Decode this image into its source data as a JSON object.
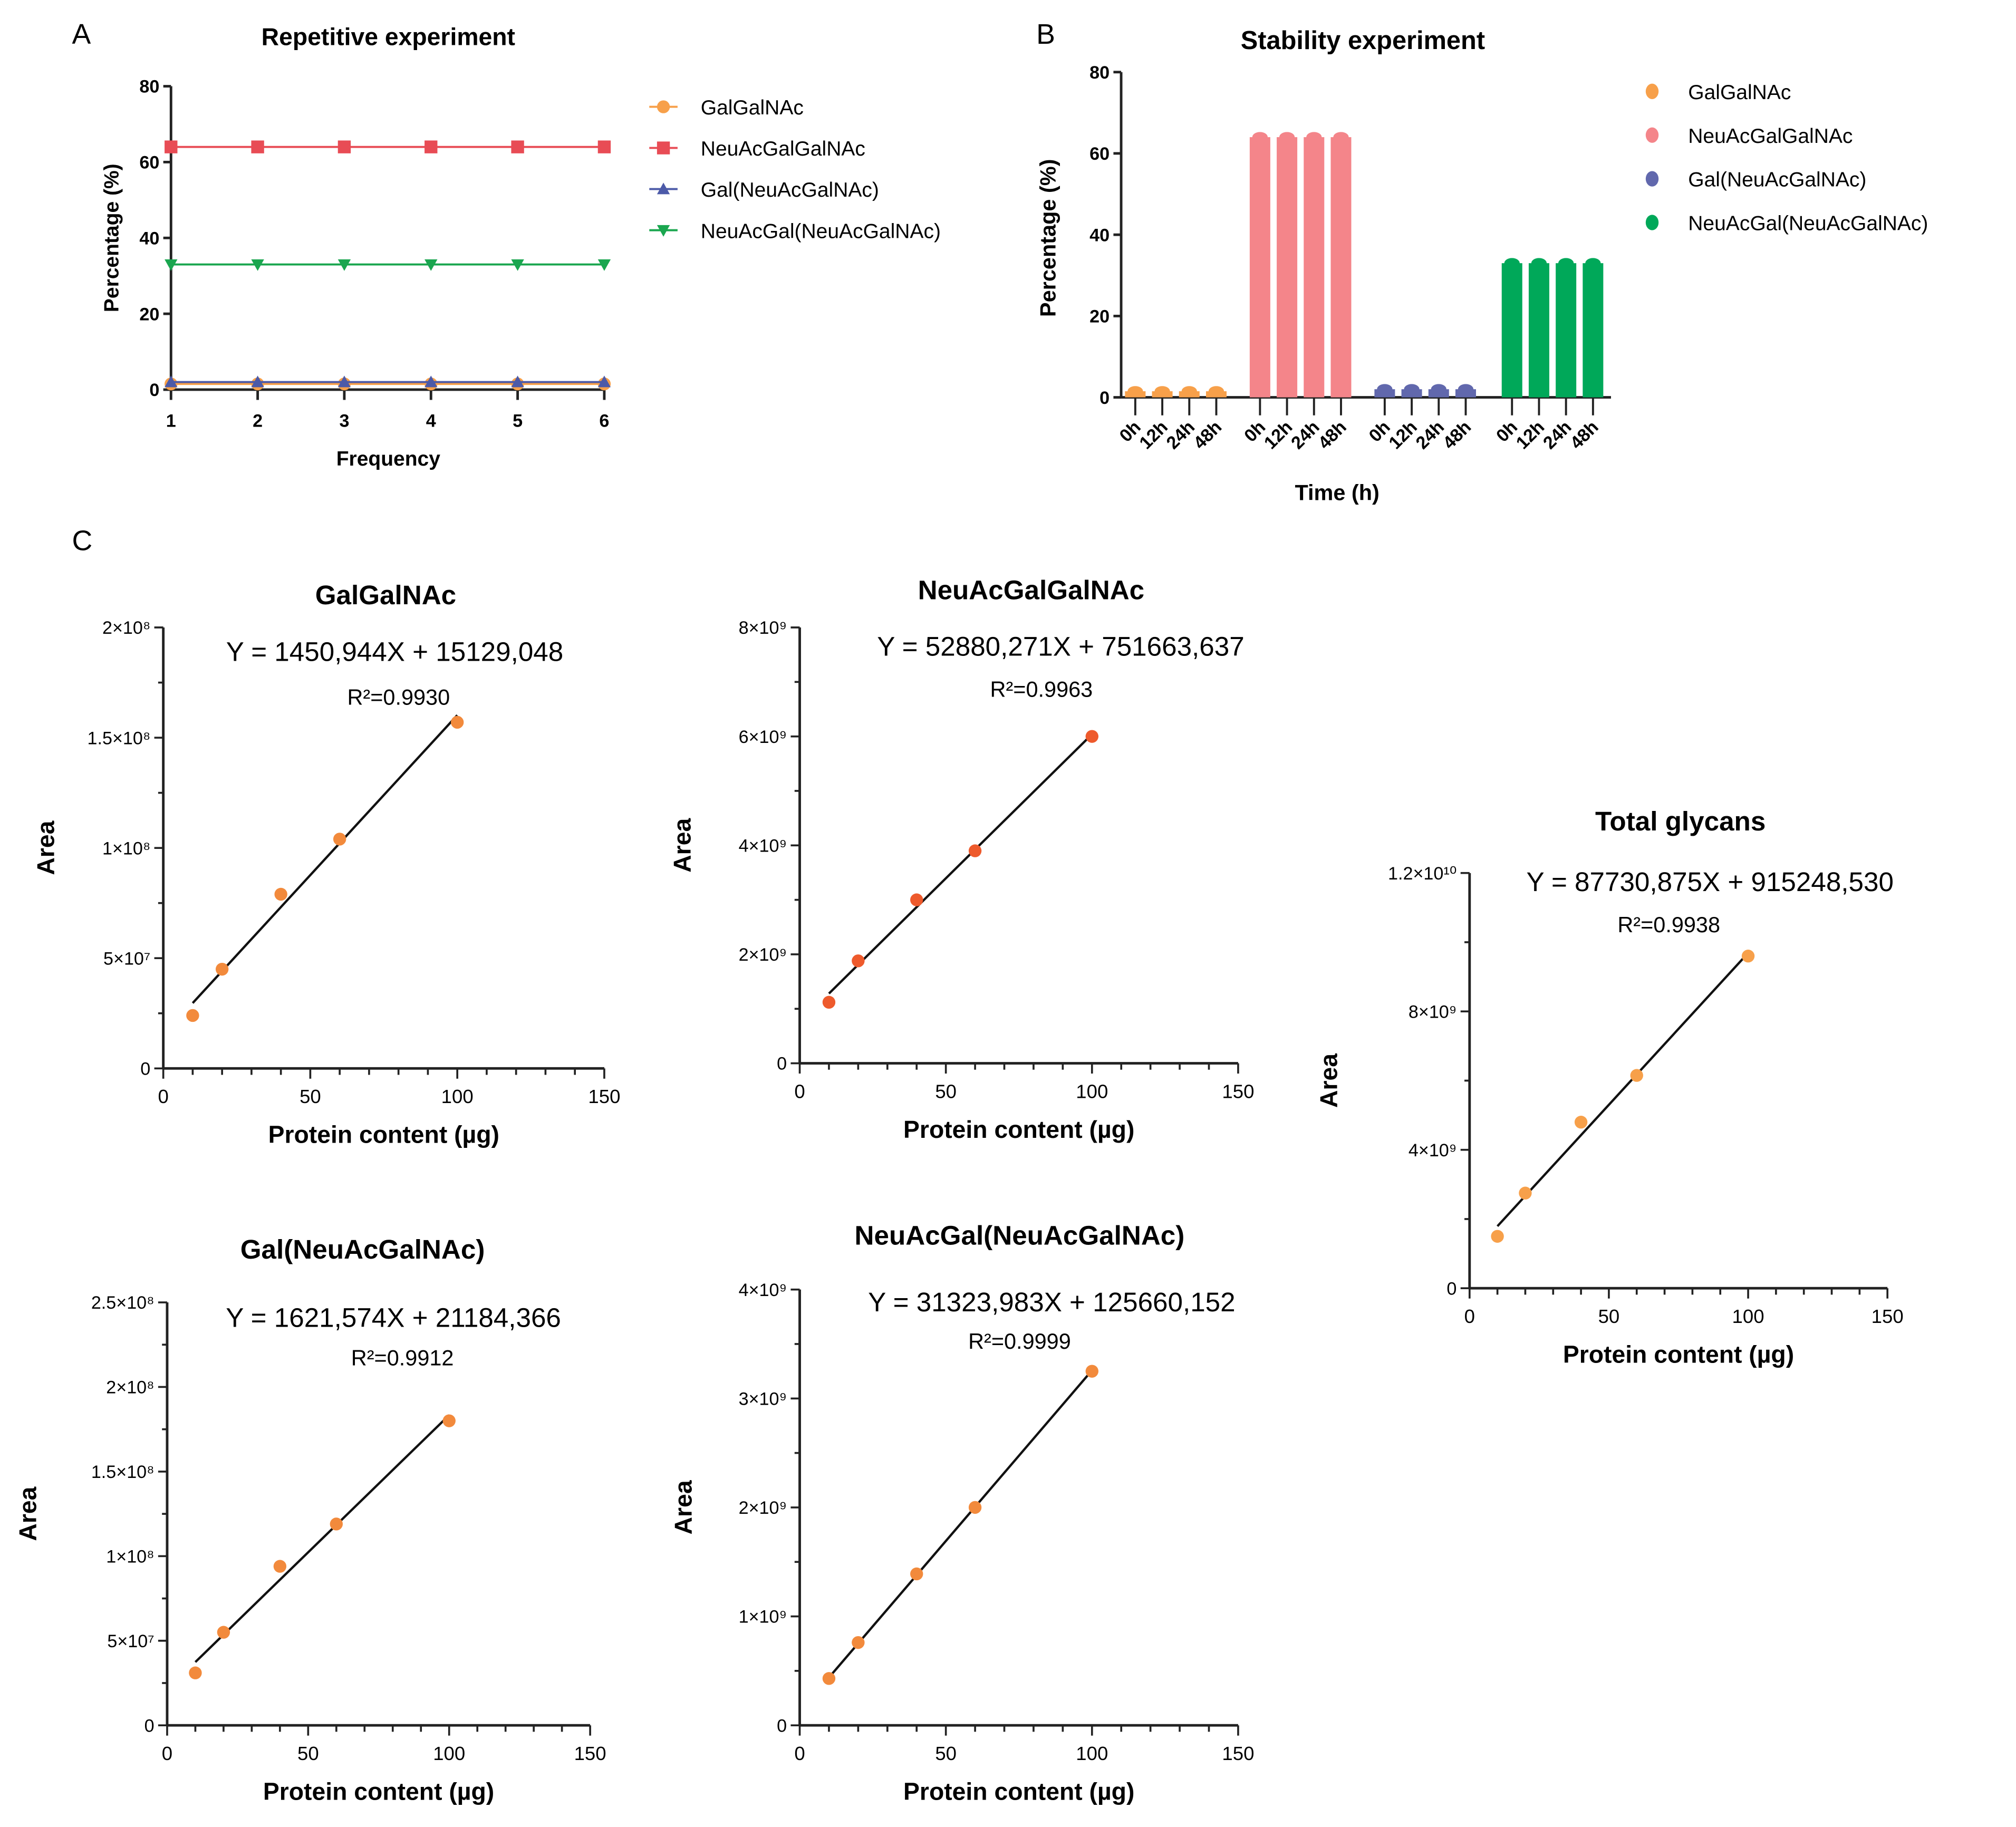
{
  "panels": {
    "a": "A",
    "b": "B",
    "c": "C"
  },
  "chart_data": [
    {
      "id": "A",
      "type": "line",
      "title": "Repetitive experiment",
      "xlabel": "Frequency",
      "ylabel": "Percentage (%)",
      "xlim": [
        1,
        6
      ],
      "ylim": [
        0,
        80
      ],
      "xticks": [
        1,
        2,
        3,
        4,
        5,
        6
      ],
      "yticks": [
        0,
        20,
        40,
        60,
        80
      ],
      "x": [
        1,
        2,
        3,
        4,
        5,
        6
      ],
      "series": [
        {
          "name": "GalGalNAc",
          "color": "#f7a04a",
          "marker": "circle",
          "values": [
            1.5,
            1.5,
            1.5,
            1.5,
            1.5,
            1.5
          ]
        },
        {
          "name": "NeuAcGalGalNAc",
          "color": "#e84c55",
          "marker": "square",
          "values": [
            64,
            64,
            64,
            64,
            64,
            64
          ]
        },
        {
          "name": "Gal(NeuAcGalNAc)",
          "color": "#4c5aa8",
          "marker": "triangle-up",
          "values": [
            2,
            2,
            2,
            2,
            2,
            2
          ]
        },
        {
          "name": "NeuAcGal(NeuAcGalNAc)",
          "color": "#1aa64f",
          "marker": "triangle-down",
          "values": [
            33,
            33,
            33,
            33,
            33,
            33
          ]
        }
      ],
      "legend": "right"
    },
    {
      "id": "B",
      "type": "bar",
      "title": "Stability experiment",
      "xlabel": "Time (h)",
      "ylabel": "Percentage (%)",
      "ylim": [
        0,
        80
      ],
      "yticks": [
        0,
        20,
        40,
        60,
        80
      ],
      "categories": [
        "0h",
        "12h",
        "24h",
        "48h"
      ],
      "series": [
        {
          "name": "GalGalNAc",
          "color": "#f7a04a",
          "values": [
            1.5,
            1.5,
            1.5,
            1.5
          ]
        },
        {
          "name": "NeuAcGalGalNAc",
          "color": "#f4858a",
          "values": [
            64,
            64,
            64,
            64
          ]
        },
        {
          "name": "Gal(NeuAcGalNAc)",
          "color": "#6168ad",
          "values": [
            2,
            2,
            2,
            2
          ]
        },
        {
          "name": "NeuAcGal(NeuAcGalNAc)",
          "color": "#00a859",
          "values": [
            33,
            33,
            33,
            33
          ]
        }
      ],
      "legend": "right"
    },
    {
      "id": "C1",
      "type": "scatter",
      "title": "GalGalNAc",
      "xlabel": "Protein content (µg)",
      "ylabel": "Area",
      "xlim": [
        0,
        150
      ],
      "ylim": [
        0,
        200000000
      ],
      "xticks": [
        0,
        50,
        100,
        150
      ],
      "yticks": [
        0,
        50000000,
        100000000,
        150000000,
        200000000
      ],
      "ytick_labels": [
        "0",
        "5×10⁷",
        "1×10⁸",
        "1.5×10⁸",
        "2×10⁸"
      ],
      "x": [
        10,
        20,
        40,
        60,
        100
      ],
      "y": [
        24000000,
        45000000,
        79000000,
        104000000,
        157000000
      ],
      "fit": {
        "slope": 1450944,
        "intercept": 15129048
      },
      "equation": "Y = 1450,944X + 15129,048",
      "r2": "R²=0.9930",
      "color": "#f28a3c"
    },
    {
      "id": "C2",
      "type": "scatter",
      "title": "NeuAcGalGalNAc",
      "xlabel": "Protein content (µg)",
      "ylabel": "Area",
      "xlim": [
        0,
        150
      ],
      "ylim": [
        0,
        8000000000
      ],
      "xticks": [
        0,
        50,
        100,
        150
      ],
      "yticks": [
        0,
        2000000000,
        4000000000,
        6000000000,
        8000000000
      ],
      "ytick_labels": [
        "0",
        "2×10⁹",
        "4×10⁹",
        "6×10⁹",
        "8×10⁹"
      ],
      "x": [
        10,
        20,
        40,
        60,
        100
      ],
      "y": [
        1120000000,
        1880000000,
        3000000000,
        3900000000,
        6000000000
      ],
      "fit": {
        "slope": 52880271,
        "intercept": 751663637
      },
      "equation": "Y = 52880,271X + 751663,637",
      "r2": "R²=0.9963",
      "color": "#ee5a2c"
    },
    {
      "id": "C3",
      "type": "scatter",
      "title": "Total glycans",
      "xlabel": "Protein content (µg)",
      "ylabel": "Area",
      "xlim": [
        0,
        150
      ],
      "ylim": [
        0,
        12000000000
      ],
      "xticks": [
        0,
        50,
        100,
        150
      ],
      "yticks": [
        0,
        4000000000,
        8000000000,
        12000000000
      ],
      "ytick_labels": [
        "0",
        "4×10⁹",
        "8×10⁹",
        "1.2×10¹⁰"
      ],
      "x": [
        10,
        20,
        40,
        60,
        100
      ],
      "y": [
        1500000000,
        2750000000,
        4800000000,
        6150000000,
        9600000000
      ],
      "fit": {
        "slope": 87730875,
        "intercept": 915248530
      },
      "equation": "Y = 87730,875X + 915248,530",
      "r2": "R²=0.9938",
      "color": "#f7a04a"
    },
    {
      "id": "C4",
      "type": "scatter",
      "title": "Gal(NeuAcGalNAc)",
      "xlabel": "Protein content (µg)",
      "ylabel": "Area",
      "xlim": [
        0,
        150
      ],
      "ylim": [
        0,
        250000000
      ],
      "xticks": [
        0,
        50,
        100,
        150
      ],
      "yticks": [
        0,
        50000000,
        100000000,
        150000000,
        200000000,
        250000000
      ],
      "ytick_labels": [
        "0",
        "5×10⁷",
        "1×10⁸",
        "1.5×10⁸",
        "2×10⁸",
        "2.5×10⁸"
      ],
      "x": [
        10,
        20,
        40,
        60,
        100
      ],
      "y": [
        31000000,
        55000000,
        94000000,
        119000000,
        180000000
      ],
      "fit": {
        "slope": 1621574,
        "intercept": 21184366
      },
      "equation": "Y = 1621,574X + 21184,366",
      "r2": "R²=0.9912",
      "color": "#f28a3c"
    },
    {
      "id": "C5",
      "type": "scatter",
      "title": "NeuAcGal(NeuAcGalNAc)",
      "xlabel": "Protein content (µg)",
      "ylabel": "Area",
      "xlim": [
        0,
        150
      ],
      "ylim": [
        0,
        4000000000
      ],
      "xticks": [
        0,
        50,
        100,
        150
      ],
      "yticks": [
        0,
        1000000000,
        2000000000,
        3000000000,
        4000000000
      ],
      "ytick_labels": [
        "0",
        "1×10⁹",
        "2×10⁹",
        "3×10⁹",
        "4×10⁹"
      ],
      "x": [
        10,
        20,
        40,
        60,
        100
      ],
      "y": [
        430000000,
        760000000,
        1390000000,
        2000000000,
        3250000000
      ],
      "fit": {
        "slope": 31323983,
        "intercept": 125660152
      },
      "equation": "Y = 31323,983X + 125660,152",
      "r2": "R²=0.9999",
      "color": "#f28a3c"
    }
  ]
}
